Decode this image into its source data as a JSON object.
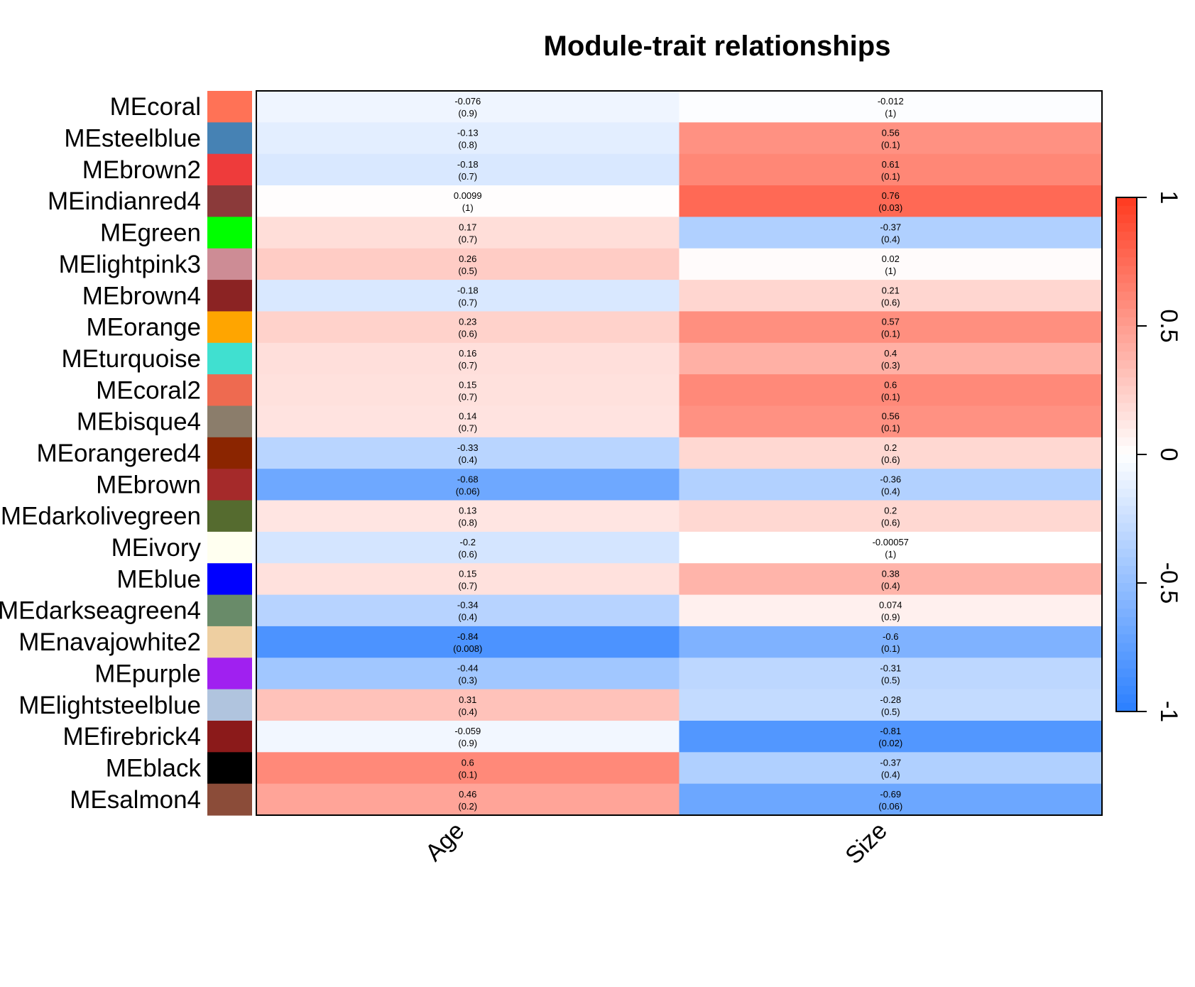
{
  "chart_data": {
    "type": "heatmap",
    "title": "Module-trait relationships",
    "columns": [
      "Age",
      "Size"
    ],
    "rows": [
      {
        "label": "MEcoral",
        "color": "#FF7256",
        "cells": [
          {
            "r": "-0.076",
            "p": "(0.9)"
          },
          {
            "r": "-0.012",
            "p": "(1)"
          }
        ]
      },
      {
        "label": "MEsteelblue",
        "color": "#4682B4",
        "cells": [
          {
            "r": "-0.13",
            "p": "(0.8)"
          },
          {
            "r": "0.56",
            "p": "(0.1)"
          }
        ]
      },
      {
        "label": "MEbrown2",
        "color": "#EE3B3B",
        "cells": [
          {
            "r": "-0.18",
            "p": "(0.7)"
          },
          {
            "r": "0.61",
            "p": "(0.1)"
          }
        ]
      },
      {
        "label": "MEindianred4",
        "color": "#8B3A3A",
        "cells": [
          {
            "r": "0.0099",
            "p": "(1)"
          },
          {
            "r": "0.76",
            "p": "(0.03)"
          }
        ]
      },
      {
        "label": "MEgreen",
        "color": "#00FF00",
        "cells": [
          {
            "r": "0.17",
            "p": "(0.7)"
          },
          {
            "r": "-0.37",
            "p": "(0.4)"
          }
        ]
      },
      {
        "label": "MElightpink3",
        "color": "#CD8C95",
        "cells": [
          {
            "r": "0.26",
            "p": "(0.5)"
          },
          {
            "r": "0.02",
            "p": "(1)"
          }
        ]
      },
      {
        "label": "MEbrown4",
        "color": "#8B2323",
        "cells": [
          {
            "r": "-0.18",
            "p": "(0.7)"
          },
          {
            "r": "0.21",
            "p": "(0.6)"
          }
        ]
      },
      {
        "label": "MEorange",
        "color": "#FFA500",
        "cells": [
          {
            "r": "0.23",
            "p": "(0.6)"
          },
          {
            "r": "0.57",
            "p": "(0.1)"
          }
        ]
      },
      {
        "label": "MEturquoise",
        "color": "#40E0D0",
        "cells": [
          {
            "r": "0.16",
            "p": "(0.7)"
          },
          {
            "r": "0.4",
            "p": "(0.3)"
          }
        ]
      },
      {
        "label": "MEcoral2",
        "color": "#EE6A50",
        "cells": [
          {
            "r": "0.15",
            "p": "(0.7)"
          },
          {
            "r": "0.6",
            "p": "(0.1)"
          }
        ]
      },
      {
        "label": "MEbisque4",
        "color": "#8B7D6B",
        "cells": [
          {
            "r": "0.14",
            "p": "(0.7)"
          },
          {
            "r": "0.56",
            "p": "(0.1)"
          }
        ]
      },
      {
        "label": "MEorangered4",
        "color": "#8B2500",
        "cells": [
          {
            "r": "-0.33",
            "p": "(0.4)"
          },
          {
            "r": "0.2",
            "p": "(0.6)"
          }
        ]
      },
      {
        "label": "MEbrown",
        "color": "#A52A2A",
        "cells": [
          {
            "r": "-0.68",
            "p": "(0.06)"
          },
          {
            "r": "-0.36",
            "p": "(0.4)"
          }
        ]
      },
      {
        "label": "MEdarkolivegreen",
        "color": "#556B2F",
        "cells": [
          {
            "r": "0.13",
            "p": "(0.8)"
          },
          {
            "r": "0.2",
            "p": "(0.6)"
          }
        ]
      },
      {
        "label": "MEivory",
        "color": "#FFFFF0",
        "cells": [
          {
            "r": "-0.2",
            "p": "(0.6)"
          },
          {
            "r": "-0.00057",
            "p": "(1)"
          }
        ]
      },
      {
        "label": "MEblue",
        "color": "#0000FF",
        "cells": [
          {
            "r": "0.15",
            "p": "(0.7)"
          },
          {
            "r": "0.38",
            "p": "(0.4)"
          }
        ]
      },
      {
        "label": "MEdarkseagreen4",
        "color": "#698B69",
        "cells": [
          {
            "r": "-0.34",
            "p": "(0.4)"
          },
          {
            "r": "0.074",
            "p": "(0.9)"
          }
        ]
      },
      {
        "label": "MEnavajowhite2",
        "color": "#EECFA1",
        "cells": [
          {
            "r": "-0.84",
            "p": "(0.008)"
          },
          {
            "r": "-0.6",
            "p": "(0.1)"
          }
        ]
      },
      {
        "label": "MEpurple",
        "color": "#A020F0",
        "cells": [
          {
            "r": "-0.44",
            "p": "(0.3)"
          },
          {
            "r": "-0.31",
            "p": "(0.5)"
          }
        ]
      },
      {
        "label": "MElightsteelblue",
        "color": "#B0C4DE",
        "cells": [
          {
            "r": "0.31",
            "p": "(0.4)"
          },
          {
            "r": "-0.28",
            "p": "(0.5)"
          }
        ]
      },
      {
        "label": "MEfirebrick4",
        "color": "#8B1A1A",
        "cells": [
          {
            "r": "-0.059",
            "p": "(0.9)"
          },
          {
            "r": "-0.81",
            "p": "(0.02)"
          }
        ]
      },
      {
        "label": "MEblack",
        "color": "#000000",
        "cells": [
          {
            "r": "0.6",
            "p": "(0.1)"
          },
          {
            "r": "-0.37",
            "p": "(0.4)"
          }
        ]
      },
      {
        "label": "MEsalmon4",
        "color": "#8B4C39",
        "cells": [
          {
            "r": "0.46",
            "p": "(0.2)"
          },
          {
            "r": "-0.69",
            "p": "(0.06)"
          }
        ]
      }
    ],
    "color_scale": {
      "min": -1,
      "max": 1,
      "low_color": "#2A7FFF",
      "mid_color": "#FFFFFF",
      "high_color": "#FF3A1F",
      "ticks": [
        "1",
        "0.5",
        "0",
        "-0.5",
        "-1"
      ]
    }
  }
}
